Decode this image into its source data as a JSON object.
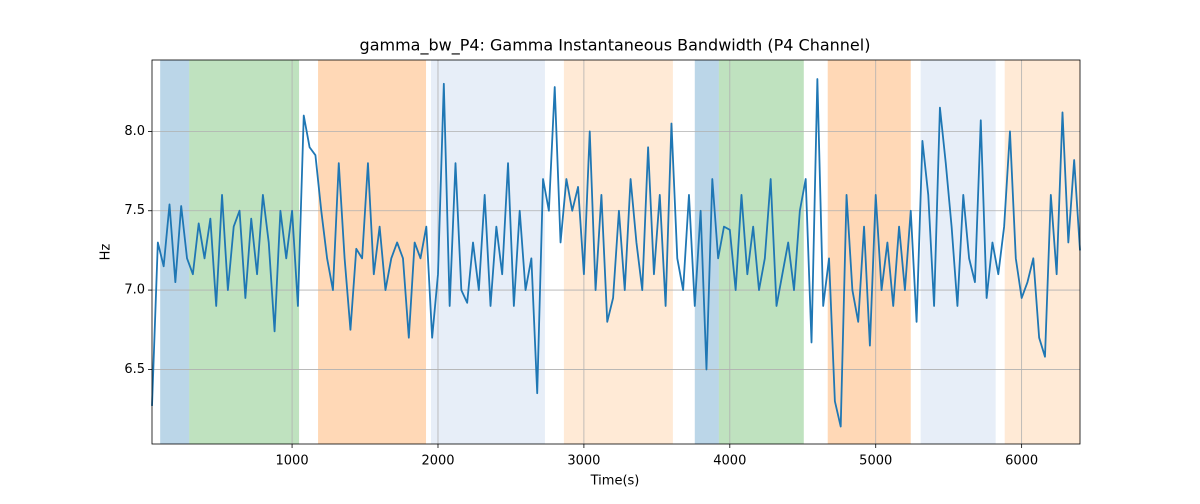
{
  "chart_data": {
    "type": "line",
    "title": "gamma_bw_P4: Gamma Instantaneous Bandwidth (P4 Channel)",
    "x_label": "Time(s)",
    "y_label": "Hz",
    "xlim": [
      40,
      6400
    ],
    "ylim": [
      6.03,
      8.45
    ],
    "xticks": [
      1000,
      2000,
      3000,
      4000,
      5000,
      6000
    ],
    "yticks": [
      6.5,
      {
        "value": 7,
        "label": "7.0"
      },
      7.5,
      {
        "value": 8,
        "label": "8.0"
      }
    ],
    "grid": true,
    "spans": [
      {
        "start": 96,
        "end": 295,
        "color": "#1f77b4"
      },
      {
        "start": 295,
        "end": 1048,
        "color": "#2ca02c"
      },
      {
        "start": 1178,
        "end": 1918,
        "color": "#ff7f0e"
      },
      {
        "start": 1952,
        "end": 2733,
        "color": "#aec7e8"
      },
      {
        "start": 2863,
        "end": 3610,
        "color": "#ffbb78"
      },
      {
        "start": 3760,
        "end": 3925,
        "color": "#1f77b4"
      },
      {
        "start": 3925,
        "end": 4507,
        "color": "#2ca02c"
      },
      {
        "start": 4671,
        "end": 5240,
        "color": "#ff7f0e"
      },
      {
        "start": 5308,
        "end": 5822,
        "color": "#aec7e8"
      },
      {
        "start": 5884,
        "end": 6400,
        "color": "#ffbb78"
      }
    ],
    "span_opacity": 0.3,
    "series": [
      {
        "name": "gamma_bw_P4",
        "color": "#1f77b4",
        "x": [
          40,
          80,
          120,
          160,
          200,
          240,
          280,
          320,
          360,
          400,
          440,
          480,
          520,
          560,
          600,
          640,
          680,
          720,
          760,
          800,
          840,
          880,
          920,
          960,
          1000,
          1040,
          1080,
          1120,
          1160,
          1200,
          1240,
          1280,
          1320,
          1360,
          1400,
          1440,
          1480,
          1520,
          1560,
          1600,
          1640,
          1680,
          1720,
          1760,
          1800,
          1840,
          1880,
          1920,
          1960,
          2000,
          2040,
          2080,
          2120,
          2160,
          2200,
          2240,
          2280,
          2320,
          2360,
          2400,
          2440,
          2480,
          2520,
          2560,
          2600,
          2640,
          2680,
          2720,
          2760,
          2800,
          2840,
          2880,
          2920,
          2960,
          3000,
          3040,
          3080,
          3120,
          3160,
          3200,
          3240,
          3280,
          3320,
          3360,
          3400,
          3440,
          3480,
          3520,
          3560,
          3600,
          3640,
          3680,
          3720,
          3760,
          3800,
          3840,
          3880,
          3920,
          3960,
          4000,
          4040,
          4080,
          4120,
          4160,
          4200,
          4240,
          4280,
          4320,
          4360,
          4400,
          4440,
          4480,
          4520,
          4560,
          4600,
          4640,
          4680,
          4720,
          4760,
          4800,
          4840,
          4880,
          4920,
          4960,
          5000,
          5040,
          5080,
          5120,
          5160,
          5200,
          5240,
          5280,
          5320,
          5360,
          5400,
          5440,
          5480,
          5520,
          5560,
          5600,
          5640,
          5680,
          5720,
          5760,
          5800,
          5840,
          5880,
          5920,
          5960,
          6000,
          6040,
          6080,
          6120,
          6160,
          6200,
          6240,
          6280,
          6320,
          6360,
          6400
        ],
        "values": [
          6.27,
          7.3,
          7.15,
          7.54,
          7.05,
          7.53,
          7.2,
          7.1,
          7.42,
          7.2,
          7.45,
          6.9,
          7.6,
          7.0,
          7.4,
          7.5,
          6.95,
          7.45,
          7.1,
          7.6,
          7.3,
          6.74,
          7.5,
          7.2,
          7.5,
          6.9,
          8.1,
          7.9,
          7.85,
          7.5,
          7.2,
          7.0,
          7.8,
          7.2,
          6.75,
          7.26,
          7.2,
          7.8,
          7.1,
          7.4,
          7.0,
          7.2,
          7.3,
          7.2,
          6.7,
          7.3,
          7.2,
          7.4,
          6.7,
          7.1,
          8.3,
          6.9,
          7.8,
          7.0,
          6.92,
          7.3,
          7.0,
          7.6,
          6.9,
          7.4,
          7.1,
          7.8,
          6.9,
          7.5,
          7.0,
          7.2,
          6.35,
          7.7,
          7.5,
          8.28,
          7.3,
          7.7,
          7.5,
          7.65,
          7.1,
          8.0,
          7.0,
          7.6,
          6.8,
          6.95,
          7.5,
          7.0,
          7.7,
          7.3,
          7.0,
          7.9,
          7.1,
          7.6,
          6.9,
          8.05,
          7.2,
          7.0,
          7.6,
          6.9,
          7.5,
          6.5,
          7.7,
          7.2,
          7.4,
          7.38,
          7.0,
          7.6,
          7.1,
          7.4,
          7.0,
          7.2,
          7.7,
          6.9,
          7.1,
          7.3,
          7.0,
          7.5,
          7.7,
          6.67,
          8.33,
          6.9,
          7.2,
          6.3,
          6.14,
          7.6,
          7.0,
          6.8,
          7.4,
          6.65,
          7.6,
          7.0,
          7.3,
          6.9,
          7.4,
          7.0,
          7.5,
          6.8,
          7.94,
          7.6,
          6.9,
          8.15,
          7.8,
          7.4,
          6.9,
          7.6,
          7.2,
          7.05,
          8.07,
          6.95,
          7.3,
          7.1,
          7.4,
          8.0,
          7.2,
          6.95,
          7.05,
          7.2,
          6.7,
          6.58,
          7.6,
          7.1,
          8.12,
          7.3,
          7.82,
          7.25
        ]
      }
    ]
  }
}
